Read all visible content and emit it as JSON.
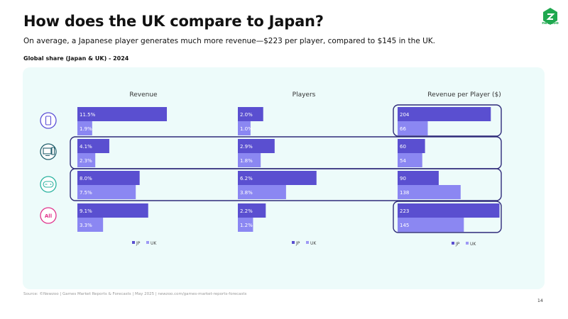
{
  "header": {
    "title": "How does the UK compare to Japan?",
    "subtitle": "On average, a Japanese player generates much more revenue—$223 per player, compared to $145 in the UK.",
    "section_label": "Global share (Japan & UK) - 2024",
    "logo_text": "newzoo"
  },
  "footer": {
    "source": "Source: ©Newzoo | Games Market Reports & Forecasts | May 2025 | newzoo.com/games-market-reports-forecasts",
    "page_number": "14"
  },
  "colors": {
    "jp": "#5a4fd0",
    "uk": "#8b87f2",
    "highlight": "#2e2a7a",
    "panel": "#edfbfa"
  },
  "segments": [
    {
      "name": "Mobile",
      "icon": "mobile-icon",
      "color": "#5b4fd6"
    },
    {
      "name": "PC",
      "icon": "pc-icon",
      "color": "#1f5e6b"
    },
    {
      "name": "Console",
      "icon": "console-icon",
      "color": "#2bb3a0"
    },
    {
      "name": "All",
      "icon": "all-badge",
      "label": "All",
      "color": "#e0338c"
    }
  ],
  "chart_data": [
    {
      "type": "bar",
      "orientation": "horizontal",
      "title": "Revenue",
      "categories": [
        "Mobile",
        "PC",
        "Console",
        "All"
      ],
      "series": [
        {
          "name": "JP",
          "values": [
            11.5,
            4.1,
            8.0,
            9.1
          ],
          "labels": [
            "11.5%",
            "4.1%",
            "8.0%",
            "9.1%"
          ]
        },
        {
          "name": "UK",
          "values": [
            1.9,
            2.3,
            7.5,
            3.3
          ],
          "labels": [
            "1.9%",
            "2.3%",
            "7.5%",
            "3.3%"
          ]
        }
      ],
      "xlim": [
        0,
        14.6
      ],
      "legend": [
        "JP",
        "UK"
      ]
    },
    {
      "type": "bar",
      "orientation": "horizontal",
      "title": "Players",
      "categories": [
        "Mobile",
        "PC",
        "Console",
        "All"
      ],
      "series": [
        {
          "name": "JP",
          "values": [
            2.0,
            2.9,
            6.2,
            2.2
          ],
          "labels": [
            "2.0%",
            "2.9%",
            "6.2%",
            "2.2%"
          ]
        },
        {
          "name": "UK",
          "values": [
            1.0,
            1.8,
            3.8,
            1.2
          ],
          "labels": [
            "1.0%",
            "1.8%",
            "3.8%",
            "1.2%"
          ]
        }
      ],
      "xlim": [
        0,
        8.9
      ],
      "legend": [
        "JP",
        "UK"
      ]
    },
    {
      "type": "bar",
      "orientation": "horizontal",
      "title": "Revenue per Player ($)",
      "categories": [
        "Mobile",
        "PC",
        "Console",
        "All"
      ],
      "series": [
        {
          "name": "JP",
          "values": [
            204,
            60,
            90,
            223
          ],
          "labels": [
            "204",
            "60",
            "90",
            "223"
          ]
        },
        {
          "name": "UK",
          "values": [
            66,
            54,
            138,
            145
          ],
          "labels": [
            "66",
            "54",
            "138",
            "145"
          ]
        }
      ],
      "xlim": [
        0,
        230
      ],
      "legend": [
        "JP",
        "UK"
      ]
    }
  ]
}
